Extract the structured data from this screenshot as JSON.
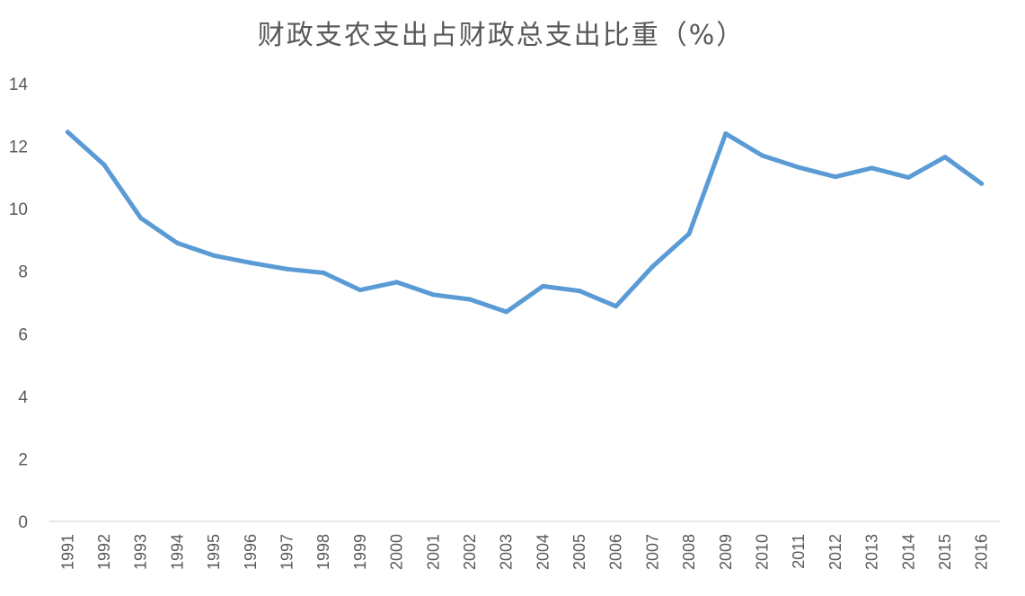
{
  "chart_data": {
    "type": "line",
    "title": "财政支农支出占财政总支出比重（%）",
    "xlabel": "",
    "ylabel": "",
    "ylim": [
      0,
      14
    ],
    "yticks": [
      "0",
      "2",
      "4",
      "6",
      "8",
      "10",
      "12",
      "14"
    ],
    "categories": [
      "1991",
      "1992",
      "1993",
      "1994",
      "1995",
      "1996",
      "1997",
      "1998",
      "1999",
      "2000",
      "2001",
      "2002",
      "2003",
      "2004",
      "2005",
      "2006",
      "2007",
      "2008",
      "2009",
      "2010",
      "2011",
      "2012",
      "2013",
      "2014",
      "2015",
      "2016"
    ],
    "series": [
      {
        "values": [
          12.45,
          11.4,
          9.7,
          8.9,
          8.5,
          8.27,
          8.07,
          7.95,
          7.4,
          7.65,
          7.25,
          7.1,
          6.7,
          7.52,
          7.37,
          6.88,
          8.15,
          9.2,
          12.4,
          11.7,
          11.32,
          11.02,
          11.3,
          11.0,
          11.65,
          10.8
        ],
        "color": "#5b9bd5"
      }
    ],
    "grid": false,
    "legend": "none"
  }
}
